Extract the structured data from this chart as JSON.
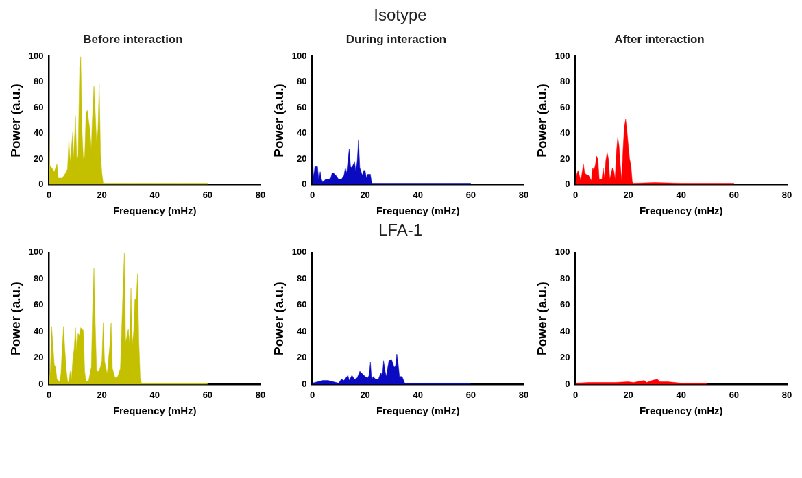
{
  "chart_data": [
    {
      "type": "area",
      "title": "Before interaction",
      "xlabel": "Frequency (mHz)",
      "ylabel": "Power (a.u.)",
      "xlim": [
        0,
        80
      ],
      "xticks": [
        0,
        20,
        40,
        60,
        80
      ],
      "ylim": [
        0,
        100
      ],
      "yticks": [
        0,
        20,
        40,
        60,
        80,
        100
      ],
      "grid": false,
      "legend": false,
      "marker": "none",
      "series": [
        {
          "color": "#c4c000",
          "x": [
            0,
            0.3,
            1,
            2,
            3,
            3.5,
            5,
            6,
            7,
            7.5,
            8,
            9,
            9.3,
            10,
            10.5,
            11,
            11.6,
            12,
            12.5,
            13,
            13.5,
            14,
            14.5,
            15,
            15.5,
            16,
            16.3,
            17,
            17.5,
            18,
            18.5,
            19,
            19.5,
            20,
            20.5,
            30,
            40,
            50,
            60
          ],
          "values": [
            40,
            15,
            13,
            10,
            16,
            5,
            5,
            8,
            12,
            35,
            18,
            41,
            20,
            53,
            20,
            22,
            92,
            100,
            42,
            20,
            22,
            56,
            58,
            50,
            42,
            28,
            47,
            77,
            57,
            33,
            42,
            79,
            24,
            9,
            1,
            1,
            1,
            1,
            1
          ]
        }
      ]
    },
    {
      "type": "area",
      "title": "During interaction",
      "annotations": [
        "Isotype"
      ],
      "xlabel": "Frequency (mHz)",
      "ylabel": "Power (a.u.)",
      "xlim": [
        0,
        80
      ],
      "xticks": [
        0,
        20,
        40,
        60,
        80
      ],
      "ylim": [
        0,
        100
      ],
      "yticks": [
        0,
        20,
        40,
        60,
        80,
        100
      ],
      "grid": false,
      "legend": false,
      "marker": "none",
      "series": [
        {
          "color": "#0a0ac0",
          "x": [
            0,
            0.5,
            1,
            2,
            2.5,
            3,
            3.5,
            4,
            5,
            6,
            7,
            7.5,
            8,
            9,
            10,
            11,
            12,
            12.5,
            13,
            14,
            14.5,
            15,
            16,
            16.5,
            17,
            17.5,
            18,
            19,
            19.5,
            20,
            20.5,
            21,
            22,
            22.5,
            30,
            40,
            50,
            60
          ],
          "values": [
            27,
            6,
            14,
            14,
            3,
            10,
            4,
            2,
            4,
            4,
            5,
            9,
            9,
            7,
            4,
            4,
            7,
            13,
            9,
            28,
            14,
            13,
            18,
            10,
            18,
            35,
            13,
            7,
            11,
            11,
            5,
            8,
            8,
            1,
            1,
            1,
            1,
            1
          ]
        }
      ]
    },
    {
      "type": "area",
      "title": "After interaction",
      "xlabel": "Frequency (mHz)",
      "ylabel": "Power (a.u.)",
      "xlim": [
        0,
        80
      ],
      "xticks": [
        0,
        20,
        40,
        60,
        80
      ],
      "ylim": [
        0,
        100
      ],
      "yticks": [
        0,
        20,
        40,
        60,
        80,
        100
      ],
      "grid": false,
      "legend": false,
      "marker": "none",
      "series": [
        {
          "color": "#ff0000",
          "x": [
            0,
            0.5,
            1,
            2,
            2.5,
            3,
            3.5,
            4,
            5,
            6,
            6.5,
            7,
            7.5,
            8,
            8.5,
            9,
            10,
            10.5,
            11,
            11.5,
            12,
            12.5,
            13,
            14,
            14.5,
            15,
            15.5,
            16,
            16.5,
            17,
            17.5,
            18,
            18.5,
            19,
            19.5,
            20,
            20.5,
            21,
            21.5,
            22,
            30,
            40,
            50,
            60
          ],
          "values": [
            1,
            8,
            11,
            3,
            9,
            16,
            9,
            8,
            7,
            3,
            13,
            11,
            15,
            22,
            20,
            4,
            4,
            13,
            5,
            19,
            25,
            20,
            4,
            13,
            11,
            4,
            25,
            37,
            30,
            15,
            3,
            27,
            45,
            51,
            42,
            30,
            20,
            15,
            2,
            1,
            1.5,
            1,
            1,
            1
          ]
        }
      ]
    },
    {
      "type": "area",
      "xlabel": "Frequency (mHz)",
      "ylabel": "Power (a.u.)",
      "xlim": [
        0,
        80
      ],
      "xticks": [
        0,
        20,
        40,
        60,
        80
      ],
      "ylim": [
        0,
        100
      ],
      "yticks": [
        0,
        20,
        40,
        60,
        80,
        100
      ],
      "grid": false,
      "legend": false,
      "marker": "none",
      "series": [
        {
          "color": "#c4c000",
          "x": [
            0,
            0.5,
            1,
            1.5,
            2,
            2.5,
            3,
            4,
            4.5,
            5,
            5.5,
            6,
            6.5,
            7,
            7.5,
            8,
            8.5,
            9,
            9.5,
            10,
            10.5,
            11,
            11.5,
            12,
            12.5,
            13,
            13.5,
            14,
            15,
            16,
            16.5,
            17,
            17.5,
            18,
            19,
            20,
            20.5,
            21,
            22,
            23,
            23.5,
            24,
            25,
            26,
            27,
            28,
            28.5,
            29,
            30,
            30.5,
            31,
            31.5,
            32,
            32.5,
            33,
            33.5,
            34,
            34.5,
            35,
            40,
            50,
            60
          ],
          "values": [
            2,
            10,
            44,
            30,
            15,
            13,
            4,
            2,
            8,
            28,
            44,
            27,
            12,
            3,
            1,
            10,
            4,
            19,
            27,
            43,
            25,
            39,
            37,
            43,
            42,
            41,
            10,
            2,
            3,
            13,
            59,
            88,
            47,
            10,
            10,
            18,
            47,
            18,
            8,
            30,
            47,
            12,
            5,
            6,
            12,
            73,
            100,
            32,
            42,
            30,
            73,
            30,
            40,
            65,
            64,
            84,
            33,
            5,
            1,
            1,
            1,
            1
          ]
        }
      ]
    },
    {
      "type": "area",
      "annotations": [
        "LFA-1"
      ],
      "xlabel": "Frequency (mHz)",
      "ylabel": "Power (a.u.)",
      "xlim": [
        0,
        80
      ],
      "xticks": [
        0,
        20,
        40,
        60,
        80
      ],
      "ylim": [
        0,
        100
      ],
      "yticks": [
        0,
        20,
        40,
        60,
        80,
        100
      ],
      "grid": false,
      "legend": false,
      "marker": "none",
      "series": [
        {
          "color": "#0a0ac0",
          "x": [
            0,
            2,
            4,
            6,
            8,
            10,
            11,
            12,
            13.5,
            14,
            15,
            16,
            17,
            18,
            19,
            20,
            21,
            21.5,
            22,
            22.5,
            23,
            24,
            25,
            26,
            26.5,
            27,
            27.5,
            28,
            29,
            30,
            30.5,
            31,
            31.5,
            32,
            32.5,
            33,
            34,
            35,
            40,
            50,
            60
          ],
          "values": [
            1,
            2,
            3,
            3,
            2,
            1,
            4,
            3,
            7,
            3,
            7,
            4,
            5,
            10,
            8,
            6,
            5,
            7,
            17,
            3,
            6,
            4,
            4,
            9,
            6,
            18,
            11,
            6,
            18,
            19,
            16,
            13,
            14,
            23,
            16,
            6,
            6,
            1,
            1,
            1,
            1
          ]
        }
      ]
    },
    {
      "type": "area",
      "xlabel": "Frequency (mHz)",
      "ylabel": "Power (a.u.)",
      "xlim": [
        0,
        80
      ],
      "xticks": [
        0,
        20,
        40,
        60,
        80
      ],
      "ylim": [
        0,
        100
      ],
      "yticks": [
        0,
        20,
        40,
        60,
        80,
        100
      ],
      "grid": false,
      "legend": false,
      "marker": "none",
      "series": [
        {
          "color": "#ff0000",
          "x": [
            0,
            5,
            10,
            15,
            20,
            22,
            26,
            27,
            29,
            31,
            32,
            35,
            40,
            50
          ],
          "values": [
            1,
            1.5,
            1.5,
            1.5,
            2,
            1.5,
            3,
            1.5,
            3,
            4,
            2,
            2,
            1,
            1
          ]
        }
      ]
    }
  ]
}
